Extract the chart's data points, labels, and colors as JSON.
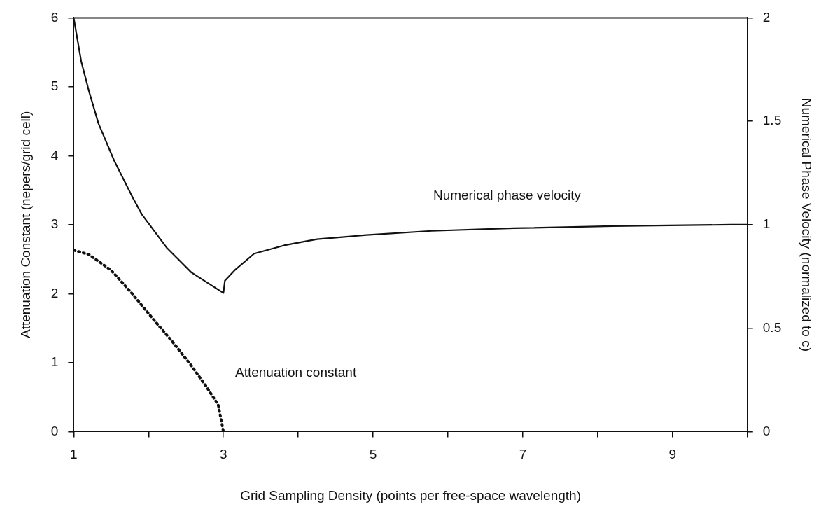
{
  "chart_data": {
    "type": "line",
    "xlabel": "Grid Sampling Density (points per free-space wavelength)",
    "ylabel": "Attenuation Constant (nepers/grid cell)",
    "y2label": "Numerical Phase Velocity (normalized to c)",
    "xlim": [
      1,
      10
    ],
    "xticks": [
      1,
      {
        "value": 2,
        "label": null
      },
      3,
      {
        "value": 4,
        "label": null
      },
      5,
      {
        "value": 6,
        "label": null
      },
      7,
      {
        "value": 8,
        "label": null
      },
      9,
      {
        "value": 10,
        "label": null
      }
    ],
    "ylim": [
      0,
      6
    ],
    "yticks": [
      0,
      1,
      2,
      3,
      4,
      5,
      6
    ],
    "y2lim": [
      0,
      2
    ],
    "y2ticks": [
      0,
      0.5,
      1,
      1.5,
      2
    ],
    "marker": "none",
    "grid": false,
    "legend": false,
    "series": [
      {
        "type": "line",
        "name": "Numerical phase velocity",
        "axis": "y2",
        "color": "#111111",
        "line_style": "solid",
        "x": [
          1,
          1.1,
          1.2,
          1.33,
          1.54,
          1.79,
          1.91,
          2.24,
          2.57,
          3,
          3.02,
          3.15,
          3.41,
          3.81,
          4.25,
          4.91,
          5.78,
          6.88,
          8.2,
          9.78,
          10
        ],
        "values": [
          2.0,
          1.79,
          1.65,
          1.49,
          1.31,
          1.13,
          1.05,
          0.89,
          0.77,
          0.67,
          0.73,
          0.78,
          0.86,
          0.9,
          0.93,
          0.95,
          0.97,
          0.983,
          0.993,
          1.0,
          1.0
        ]
      },
      {
        "type": "line",
        "name": "Attenuation constant",
        "axis": "y",
        "color": "#111111",
        "line_style": "dotted",
        "x": [
          1,
          1.2,
          1.5,
          1.79,
          2.04,
          2.33,
          2.57,
          2.78,
          2.93,
          3
        ],
        "values": [
          2.63,
          2.57,
          2.34,
          1.99,
          1.66,
          1.29,
          0.96,
          0.64,
          0.39,
          0
        ]
      }
    ]
  }
}
